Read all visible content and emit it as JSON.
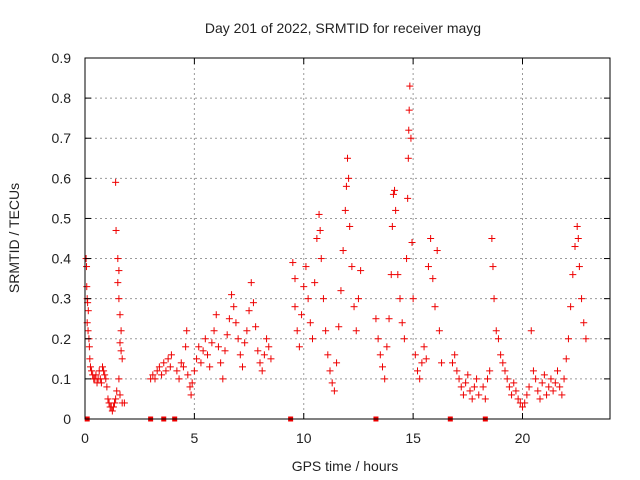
{
  "chart_data": {
    "type": "scatter",
    "title": "Day 201 of 2022, SRMTID for receiver mayg",
    "xlabel": "GPS time / hours",
    "ylabel": "SRMTID / TECUs",
    "xlim": [
      0,
      24
    ],
    "ylim": [
      0,
      0.9
    ],
    "grid": true,
    "marker": "+",
    "color": "#ee0000",
    "xticks": [
      0,
      5,
      10,
      15,
      20
    ],
    "xtick_labels": [
      "0",
      "5",
      "10",
      "15",
      "20"
    ],
    "yticks": [
      0,
      0.1,
      0.2,
      0.3,
      0.4,
      0.5,
      0.6,
      0.7,
      0.8,
      0.9
    ],
    "ytick_labels": [
      "0",
      "0.1",
      "0.2",
      "0.3",
      "0.4",
      "0.5",
      "0.6",
      "0.7",
      "0.8",
      "0.9"
    ],
    "series": [
      {
        "name": "SRMTID",
        "points": [
          [
            0.05,
            0.4
          ],
          [
            0.07,
            0.38
          ],
          [
            0.08,
            0.33
          ],
          [
            0.1,
            0.3
          ],
          [
            0.12,
            0.29
          ],
          [
            0.15,
            0.27
          ],
          [
            0.1,
            0.24
          ],
          [
            0.14,
            0.22
          ],
          [
            0.18,
            0.2
          ],
          [
            0.2,
            0.18
          ],
          [
            0.22,
            0.15
          ],
          [
            0.25,
            0.13
          ],
          [
            0.3,
            0.12
          ],
          [
            0.35,
            0.11
          ],
          [
            0.4,
            0.1
          ],
          [
            0.45,
            0.1
          ],
          [
            0.5,
            0.11
          ],
          [
            0.55,
            0.09
          ],
          [
            0.6,
            0.1
          ],
          [
            0.65,
            0.12
          ],
          [
            0.7,
            0.1
          ],
          [
            0.75,
            0.09
          ],
          [
            0.8,
            0.13
          ],
          [
            0.85,
            0.12
          ],
          [
            0.9,
            0.11
          ],
          [
            0.95,
            0.1
          ],
          [
            1.0,
            0.08
          ],
          [
            1.05,
            0.05
          ],
          [
            1.1,
            0.04
          ],
          [
            1.15,
            0.03
          ],
          [
            1.2,
            0.03
          ],
          [
            1.25,
            0.02
          ],
          [
            1.3,
            0.03
          ],
          [
            1.35,
            0.04
          ],
          [
            1.4,
            0.05
          ],
          [
            1.45,
            0.07
          ],
          [
            1.4,
            0.59
          ],
          [
            1.42,
            0.47
          ],
          [
            1.5,
            0.4
          ],
          [
            1.55,
            0.37
          ],
          [
            1.5,
            0.34
          ],
          [
            1.55,
            0.3
          ],
          [
            1.6,
            0.26
          ],
          [
            1.65,
            0.22
          ],
          [
            1.6,
            0.19
          ],
          [
            1.65,
            0.17
          ],
          [
            1.7,
            0.15
          ],
          [
            1.55,
            0.1
          ],
          [
            1.6,
            0.06
          ],
          [
            1.7,
            0.04
          ],
          [
            1.8,
            0.04
          ],
          [
            3.0,
            0.1
          ],
          [
            3.1,
            0.11
          ],
          [
            3.2,
            0.1
          ],
          [
            3.3,
            0.12
          ],
          [
            3.4,
            0.13
          ],
          [
            3.5,
            0.11
          ],
          [
            3.6,
            0.14
          ],
          [
            3.7,
            0.12
          ],
          [
            3.8,
            0.15
          ],
          [
            3.9,
            0.13
          ],
          [
            3.95,
            0.16
          ],
          [
            4.2,
            0.12
          ],
          [
            4.3,
            0.1
          ],
          [
            4.4,
            0.14
          ],
          [
            4.5,
            0.13
          ],
          [
            4.6,
            0.18
          ],
          [
            4.65,
            0.22
          ],
          [
            4.7,
            0.11
          ],
          [
            4.8,
            0.08
          ],
          [
            4.85,
            0.06
          ],
          [
            4.9,
            0.09
          ],
          [
            5.0,
            0.12
          ],
          [
            5.1,
            0.15
          ],
          [
            5.2,
            0.18
          ],
          [
            5.3,
            0.14
          ],
          [
            5.4,
            0.17
          ],
          [
            5.5,
            0.2
          ],
          [
            5.6,
            0.16
          ],
          [
            5.7,
            0.13
          ],
          [
            5.8,
            0.19
          ],
          [
            5.9,
            0.22
          ],
          [
            6.0,
            0.26
          ],
          [
            6.1,
            0.18
          ],
          [
            6.2,
            0.14
          ],
          [
            6.3,
            0.1
          ],
          [
            6.4,
            0.17
          ],
          [
            6.5,
            0.21
          ],
          [
            6.6,
            0.25
          ],
          [
            6.7,
            0.31
          ],
          [
            6.8,
            0.28
          ],
          [
            6.9,
            0.24
          ],
          [
            7.0,
            0.2
          ],
          [
            7.1,
            0.16
          ],
          [
            7.2,
            0.13
          ],
          [
            7.3,
            0.19
          ],
          [
            7.4,
            0.22
          ],
          [
            7.5,
            0.27
          ],
          [
            7.6,
            0.34
          ],
          [
            7.7,
            0.29
          ],
          [
            7.8,
            0.23
          ],
          [
            7.9,
            0.17
          ],
          [
            8.0,
            0.14
          ],
          [
            8.1,
            0.12
          ],
          [
            8.2,
            0.16
          ],
          [
            8.3,
            0.2
          ],
          [
            8.4,
            0.18
          ],
          [
            8.5,
            0.15
          ],
          [
            9.5,
            0.39
          ],
          [
            9.6,
            0.35
          ],
          [
            9.6,
            0.28
          ],
          [
            9.7,
            0.22
          ],
          [
            9.8,
            0.18
          ],
          [
            9.9,
            0.26
          ],
          [
            10.0,
            0.33
          ],
          [
            10.1,
            0.38
          ],
          [
            10.2,
            0.3
          ],
          [
            10.3,
            0.24
          ],
          [
            10.4,
            0.2
          ],
          [
            10.5,
            0.34
          ],
          [
            10.6,
            0.45
          ],
          [
            10.7,
            0.51
          ],
          [
            10.75,
            0.47
          ],
          [
            10.8,
            0.4
          ],
          [
            10.9,
            0.3
          ],
          [
            11.0,
            0.22
          ],
          [
            11.1,
            0.16
          ],
          [
            11.2,
            0.12
          ],
          [
            11.3,
            0.09
          ],
          [
            11.4,
            0.07
          ],
          [
            11.5,
            0.14
          ],
          [
            11.6,
            0.23
          ],
          [
            11.7,
            0.32
          ],
          [
            11.8,
            0.42
          ],
          [
            11.9,
            0.52
          ],
          [
            11.95,
            0.58
          ],
          [
            12.0,
            0.65
          ],
          [
            12.05,
            0.6
          ],
          [
            12.1,
            0.48
          ],
          [
            12.2,
            0.38
          ],
          [
            12.3,
            0.28
          ],
          [
            12.4,
            0.22
          ],
          [
            12.5,
            0.3
          ],
          [
            12.6,
            0.37
          ],
          [
            13.3,
            0.25
          ],
          [
            13.4,
            0.2
          ],
          [
            13.5,
            0.16
          ],
          [
            13.6,
            0.13
          ],
          [
            13.7,
            0.1
          ],
          [
            13.8,
            0.18
          ],
          [
            13.9,
            0.25
          ],
          [
            14.0,
            0.36
          ],
          [
            14.05,
            0.48
          ],
          [
            14.1,
            0.56
          ],
          [
            14.15,
            0.57
          ],
          [
            14.2,
            0.52
          ],
          [
            14.3,
            0.36
          ],
          [
            14.4,
            0.3
          ],
          [
            14.5,
            0.24
          ],
          [
            14.6,
            0.2
          ],
          [
            14.7,
            0.4
          ],
          [
            14.75,
            0.55
          ],
          [
            14.78,
            0.65
          ],
          [
            14.8,
            0.72
          ],
          [
            14.82,
            0.77
          ],
          [
            14.85,
            0.83
          ],
          [
            14.9,
            0.7
          ],
          [
            14.95,
            0.44
          ],
          [
            15.0,
            0.3
          ],
          [
            15.1,
            0.16
          ],
          [
            15.2,
            0.12
          ],
          [
            15.3,
            0.1
          ],
          [
            15.4,
            0.14
          ],
          [
            15.5,
            0.18
          ],
          [
            15.6,
            0.15
          ],
          [
            15.7,
            0.38
          ],
          [
            15.8,
            0.45
          ],
          [
            15.9,
            0.35
          ],
          [
            16.0,
            0.28
          ],
          [
            16.1,
            0.42
          ],
          [
            16.2,
            0.22
          ],
          [
            16.3,
            0.14
          ],
          [
            16.8,
            0.14
          ],
          [
            16.9,
            0.16
          ],
          [
            17.0,
            0.12
          ],
          [
            17.1,
            0.1
          ],
          [
            17.2,
            0.08
          ],
          [
            17.3,
            0.06
          ],
          [
            17.4,
            0.09
          ],
          [
            17.5,
            0.11
          ],
          [
            17.6,
            0.07
          ],
          [
            17.7,
            0.05
          ],
          [
            17.8,
            0.08
          ],
          [
            17.9,
            0.1
          ],
          [
            18.0,
            0.06
          ],
          [
            18.2,
            0.08
          ],
          [
            18.3,
            0.05
          ],
          [
            18.4,
            0.1
          ],
          [
            18.5,
            0.12
          ],
          [
            18.6,
            0.45
          ],
          [
            18.65,
            0.38
          ],
          [
            18.7,
            0.3
          ],
          [
            18.8,
            0.22
          ],
          [
            18.9,
            0.2
          ],
          [
            19.0,
            0.16
          ],
          [
            19.1,
            0.14
          ],
          [
            19.2,
            0.12
          ],
          [
            19.3,
            0.1
          ],
          [
            19.4,
            0.08
          ],
          [
            19.5,
            0.06
          ],
          [
            19.6,
            0.09
          ],
          [
            19.7,
            0.07
          ],
          [
            19.8,
            0.05
          ],
          [
            19.9,
            0.04
          ],
          [
            20.0,
            0.03
          ],
          [
            20.1,
            0.04
          ],
          [
            20.2,
            0.06
          ],
          [
            20.3,
            0.08
          ],
          [
            20.4,
            0.22
          ],
          [
            20.5,
            0.12
          ],
          [
            20.6,
            0.1
          ],
          [
            20.7,
            0.07
          ],
          [
            20.8,
            0.05
          ],
          [
            20.9,
            0.09
          ],
          [
            21.0,
            0.11
          ],
          [
            21.1,
            0.06
          ],
          [
            21.2,
            0.08
          ],
          [
            21.3,
            0.1
          ],
          [
            21.4,
            0.07
          ],
          [
            21.5,
            0.09
          ],
          [
            21.6,
            0.12
          ],
          [
            21.7,
            0.08
          ],
          [
            21.8,
            0.06
          ],
          [
            21.9,
            0.1
          ],
          [
            22.0,
            0.15
          ],
          [
            22.1,
            0.2
          ],
          [
            22.2,
            0.28
          ],
          [
            22.3,
            0.36
          ],
          [
            22.4,
            0.43
          ],
          [
            22.5,
            0.48
          ],
          [
            22.55,
            0.45
          ],
          [
            22.6,
            0.38
          ],
          [
            22.7,
            0.3
          ],
          [
            22.8,
            0.24
          ],
          [
            22.9,
            0.2
          ]
        ]
      }
    ],
    "zero_markers_x": [
      0.1,
      3.0,
      3.6,
      4.1,
      9.4,
      13.3,
      16.7,
      18.3
    ]
  }
}
